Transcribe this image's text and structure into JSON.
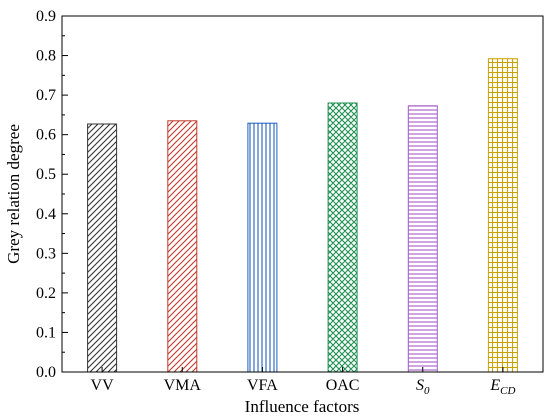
{
  "chart_data": {
    "type": "bar",
    "xlabel": "Influence factors",
    "ylabel": "Grey relation degree",
    "ylim": [
      0.0,
      0.9
    ],
    "yticks": [
      "0.0",
      "0.1",
      "0.2",
      "0.3",
      "0.4",
      "0.5",
      "0.6",
      "0.7",
      "0.8",
      "0.9"
    ],
    "categories": [
      {
        "label": "VV",
        "main": "VV",
        "sub": ""
      },
      {
        "label": "VMA",
        "main": "VMA",
        "sub": ""
      },
      {
        "label": "VFA",
        "main": "VFA",
        "sub": ""
      },
      {
        "label": "OAC",
        "main": "OAC",
        "sub": ""
      },
      {
        "label": "S0",
        "main": "S",
        "sub": "0"
      },
      {
        "label": "ECD",
        "main": "E",
        "sub": "CD"
      }
    ],
    "values": [
      0.627,
      0.635,
      0.629,
      0.68,
      0.673,
      0.792
    ],
    "bar_styles": [
      {
        "pattern": "diag-right",
        "color": "#333333"
      },
      {
        "pattern": "diag-right",
        "color": "#c0392b"
      },
      {
        "pattern": "vertical",
        "color": "#1f5fbf"
      },
      {
        "pattern": "crosshatch",
        "color": "#1e8f50"
      },
      {
        "pattern": "horizontal",
        "color": "#a45cc8"
      },
      {
        "pattern": "grid",
        "color": "#c9a100"
      }
    ]
  }
}
